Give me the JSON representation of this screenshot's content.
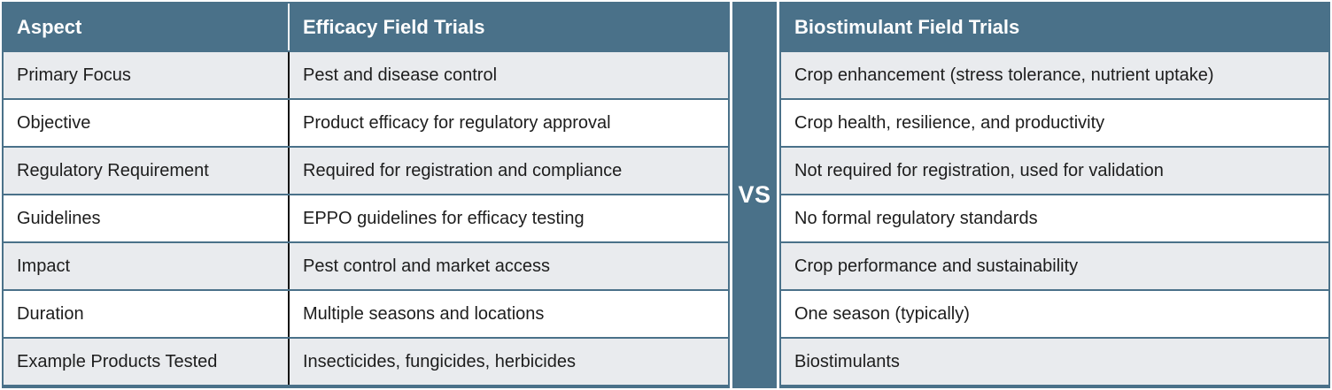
{
  "colors": {
    "header_bg": "#4a7189",
    "divider_bg": "#4a7189",
    "row_alt_bg": "#e9ebee",
    "row_bg": "#ffffff",
    "header_text": "#ffffff",
    "body_text": "#1d1d1d",
    "column_divider_line": "#151515",
    "grid_line": "#4a7189"
  },
  "chart_data": {
    "type": "table",
    "title": "",
    "divider_label": "VS",
    "columns": [
      "Aspect",
      "Efficacy Field Trials",
      "Biostimulant Field Trials"
    ],
    "rows": [
      [
        "Primary Focus",
        "Pest and disease control",
        "Crop enhancement (stress tolerance, nutrient uptake)"
      ],
      [
        "Objective",
        "Product efficacy for regulatory approval",
        "Crop health, resilience, and productivity"
      ],
      [
        "Regulatory Requirement",
        "Required for registration and compliance",
        "Not required for registration, used for validation"
      ],
      [
        "Guidelines",
        "EPPO guidelines for efficacy testing",
        "No formal regulatory standards"
      ],
      [
        "Impact",
        "Pest control and market access",
        "Crop performance and sustainability"
      ],
      [
        "Duration",
        "Multiple seasons and locations",
        "One season (typically)"
      ],
      [
        "Example Products Tested",
        "Insecticides, fungicides, herbicides",
        "Biostimulants"
      ]
    ],
    "layout": {
      "row_striping": "odd rows shaded light gray",
      "legend": "none",
      "grid": "on"
    }
  }
}
